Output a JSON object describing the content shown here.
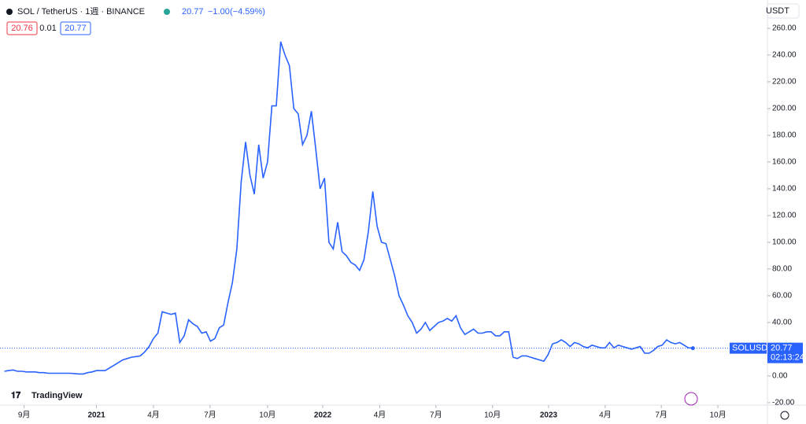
{
  "chart_data": {
    "type": "line",
    "title": "SOL / TetherUS · 1週 · BINANCE",
    "last_price": "20.77",
    "change": "−1.00",
    "change_pct": "(−4.59%)",
    "bid": "20.76",
    "spread": "0.01",
    "ask": "20.77",
    "currency": "USDT",
    "symbol_tag": "SOLUSDT",
    "countdown": "02:13:24",
    "brand": "TradingView",
    "series": [
      {
        "name": "SOLUSDT",
        "color": "#2962ff",
        "values": [
          3.5,
          4,
          4.5,
          3.5,
          3.5,
          3,
          3,
          3,
          2.5,
          2.5,
          2,
          2,
          2,
          2,
          2,
          2,
          1.8,
          1.5,
          1.5,
          2.5,
          3,
          4,
          4,
          4,
          6,
          8,
          10,
          12,
          13,
          14,
          14.5,
          15,
          18,
          22,
          28,
          32,
          48,
          47,
          46,
          47,
          25,
          30,
          42,
          39,
          37,
          32,
          33,
          26,
          28,
          36,
          38,
          55,
          70,
          95,
          145,
          175,
          150,
          136,
          173,
          148,
          160,
          202,
          202,
          250,
          240,
          232,
          200,
          196,
          173,
          180,
          198,
          170,
          140,
          148,
          100,
          95,
          115,
          93,
          90,
          85,
          83,
          79,
          87,
          108,
          138,
          112,
          100,
          99,
          87,
          75,
          60,
          53,
          45,
          40,
          32,
          35,
          40,
          34,
          37,
          40,
          41,
          43,
          41,
          45,
          36,
          31,
          33,
          35,
          32,
          32,
          33,
          33,
          30,
          30,
          33,
          33,
          14,
          13,
          15,
          15,
          14,
          13,
          12,
          11,
          16,
          24,
          25,
          27,
          25,
          22,
          25,
          24,
          22,
          21,
          23,
          22,
          21,
          21,
          25,
          21,
          23,
          22,
          21,
          20,
          21,
          22,
          17,
          17,
          19,
          22,
          23,
          27,
          25,
          24,
          25,
          23,
          21,
          20.77
        ]
      }
    ],
    "xlim": [
      -1,
      174
    ],
    "xticks": [
      {
        "value": 4.5,
        "label": "9月"
      },
      {
        "value": 21,
        "label": "2021"
      },
      {
        "value": 34,
        "label": "4月"
      },
      {
        "value": 46.9,
        "label": "7月"
      },
      {
        "value": 60,
        "label": "10月"
      },
      {
        "value": 72.6,
        "label": "2022"
      },
      {
        "value": 85.6,
        "label": "4月"
      },
      {
        "value": 98.4,
        "label": "7月"
      },
      {
        "value": 111.3,
        "label": "10月"
      },
      {
        "value": 124.1,
        "label": "2023"
      },
      {
        "value": 137,
        "label": "4月"
      },
      {
        "value": 149.8,
        "label": "7月"
      },
      {
        "value": 162.7,
        "label": "10月"
      }
    ],
    "ylim": [
      -21.8,
      269.4
    ],
    "yticks": [
      {
        "value": -20,
        "label": "-20.00"
      },
      {
        "value": 0,
        "label": "0.00"
      },
      {
        "value": 20,
        "label": "20.00"
      },
      {
        "value": 40,
        "label": "40.00"
      },
      {
        "value": 60,
        "label": "60.00"
      },
      {
        "value": 80,
        "label": "80.00"
      },
      {
        "value": 100,
        "label": "100.00"
      },
      {
        "value": 120,
        "label": "120.00"
      },
      {
        "value": 140,
        "label": "140.00"
      },
      {
        "value": 160,
        "label": "160.00"
      },
      {
        "value": 180,
        "label": "180.00"
      },
      {
        "value": 200,
        "label": "200.00"
      },
      {
        "value": 220,
        "label": "220.00"
      },
      {
        "value": 240,
        "label": "240.00"
      },
      {
        "value": 260,
        "label": "260.00"
      }
    ],
    "grid": false
  }
}
